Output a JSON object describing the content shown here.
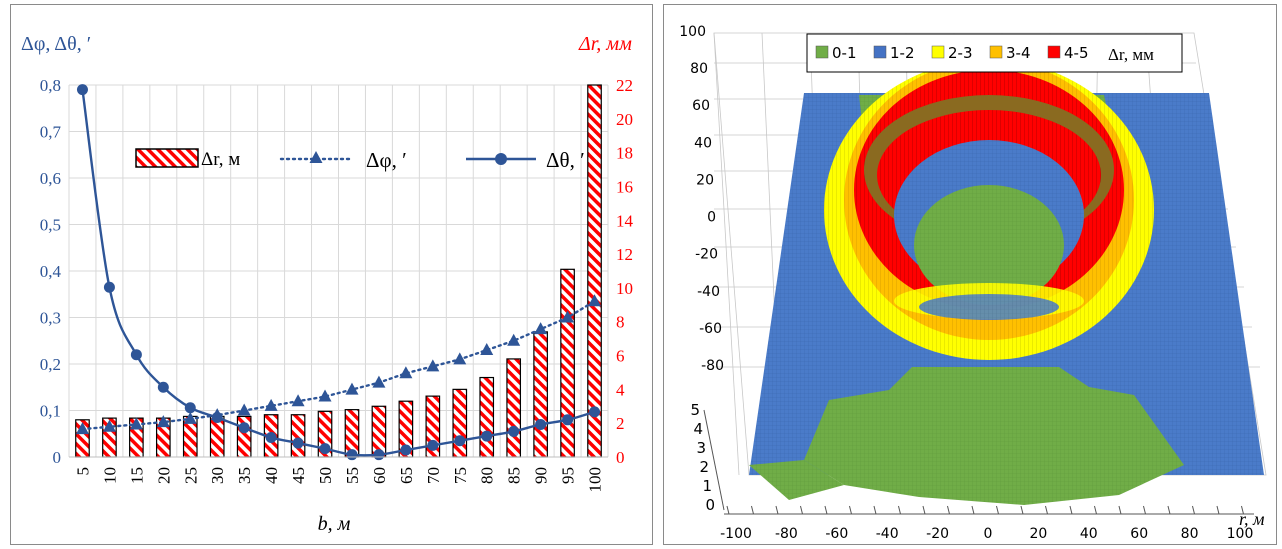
{
  "chart_data": [
    {
      "type": "bar+line",
      "xlabel": "b, м",
      "ylabel_left": "Δφ, Δθ, ′",
      "ylabel_right": "Δr, мм",
      "categories": [
        "5",
        "10",
        "15",
        "20",
        "25",
        "30",
        "35",
        "40",
        "45",
        "50",
        "55",
        "60",
        "65",
        "70",
        "75",
        "80",
        "85",
        "90",
        "95",
        "100"
      ],
      "left_axis": {
        "ylim": [
          0,
          0.8
        ],
        "ticks": [
          "0",
          "0,1",
          "0,2",
          "0,3",
          "0,4",
          "0,5",
          "0,6",
          "0,7",
          "0,8"
        ]
      },
      "right_axis": {
        "ylim": [
          0,
          22
        ],
        "ticks": [
          "0",
          "2",
          "4",
          "6",
          "8",
          "10",
          "12",
          "14",
          "16",
          "18",
          "20",
          "22"
        ]
      },
      "grid": true,
      "legend_position": "upper-middle",
      "series": [
        {
          "name": "Δr, м",
          "kind": "bar",
          "axis": "right",
          "color": "#ff0000",
          "values": [
            2.2,
            2.3,
            2.3,
            2.3,
            2.4,
            2.4,
            2.4,
            2.5,
            2.5,
            2.7,
            2.8,
            3.0,
            3.3,
            3.6,
            4.0,
            4.7,
            5.8,
            7.4,
            11.1,
            22.0
          ]
        },
        {
          "name": "Δφ, ′",
          "kind": "line-dotted",
          "marker": "triangle",
          "axis": "left",
          "color": "#2e5597",
          "values": [
            0.06,
            0.065,
            0.07,
            0.075,
            0.082,
            0.09,
            0.1,
            0.11,
            0.12,
            0.13,
            0.145,
            0.16,
            0.18,
            0.195,
            0.21,
            0.23,
            0.25,
            0.275,
            0.3,
            0.335
          ]
        },
        {
          "name": "Δθ, ′",
          "kind": "line",
          "marker": "circle",
          "axis": "left",
          "color": "#2e5597",
          "values": [
            0.79,
            0.365,
            0.22,
            0.15,
            0.106,
            0.085,
            0.063,
            0.042,
            0.03,
            0.018,
            0.005,
            0.005,
            0.015,
            0.025,
            0.035,
            0.045,
            0.055,
            0.07,
            0.08,
            0.097
          ]
        }
      ]
    },
    {
      "type": "surface3d",
      "xlabel": "r, м",
      "zlabel": "Δr, мм",
      "x_ticks": [
        "-100",
        "-80",
        "-60",
        "-40",
        "-20",
        "0",
        "20",
        "40",
        "60",
        "80",
        "100"
      ],
      "y_ticks": [
        "100",
        "80",
        "60",
        "40",
        "20",
        "0",
        "-20",
        "-40",
        "-60",
        "-80"
      ],
      "z_ticks": [
        "5",
        "4",
        "3",
        "2",
        "1",
        "0"
      ],
      "legend_position": "top",
      "legend": [
        {
          "label": "0-1",
          "color": "#70ad47"
        },
        {
          "label": "1-2",
          "color": "#4472c4"
        },
        {
          "label": "2-3",
          "color": "#ffff00"
        },
        {
          "label": "3-4",
          "color": "#ffc000"
        },
        {
          "label": "4-5",
          "color": "#ff0000"
        }
      ]
    }
  ]
}
